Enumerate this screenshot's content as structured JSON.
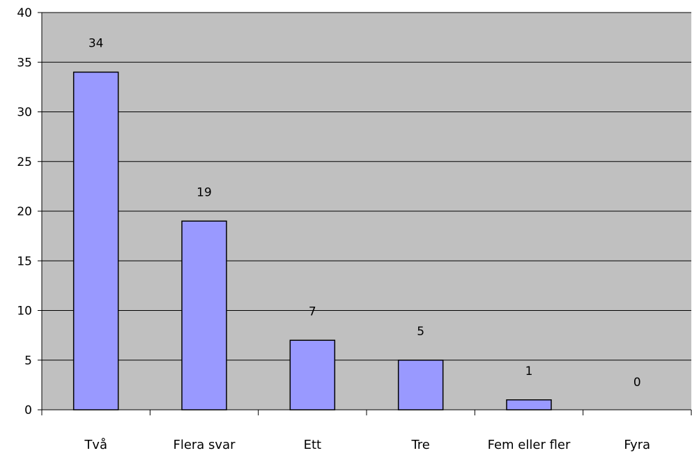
{
  "chart_data": {
    "type": "bar",
    "title": "",
    "xlabel": "",
    "ylabel": "",
    "categories": [
      "Två",
      "Flera svar",
      "Ett",
      "Tre",
      "Fem eller fler",
      "Fyra"
    ],
    "values": [
      34,
      19,
      7,
      5,
      1,
      0
    ],
    "data_labels": [
      "34",
      "19",
      "7",
      "5",
      "1",
      "0"
    ],
    "ylim": [
      0,
      40
    ],
    "yticks": [
      0,
      5,
      10,
      15,
      20,
      25,
      30,
      35,
      40
    ],
    "ytick_labels": [
      "0",
      "5",
      "10",
      "15",
      "20",
      "25",
      "30",
      "35",
      "40"
    ],
    "grid": true,
    "legend": "none",
    "colors": {
      "plot_background": "#c0c0c0",
      "bar_fill": "#9999ff",
      "bar_stroke": "#000000",
      "grid": "#000000"
    }
  }
}
